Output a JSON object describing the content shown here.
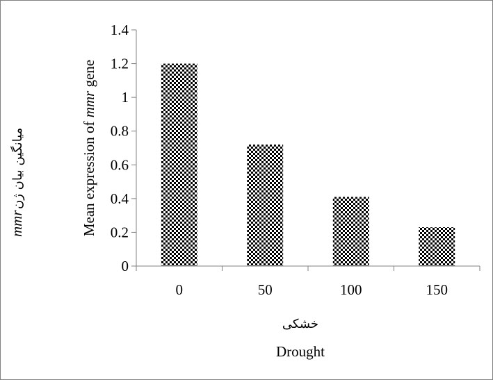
{
  "chart_data": {
    "type": "bar",
    "categories": [
      "0",
      "50",
      "100",
      "150"
    ],
    "values": [
      1.2,
      0.72,
      0.41,
      0.23
    ],
    "ylim": [
      0,
      1.4
    ],
    "yticks": [
      "0",
      "0.2",
      "0.4",
      "0.6",
      "0.8",
      "1",
      "1.2",
      "1.4"
    ],
    "xlabel_fa": "خشکی",
    "xlabel": "Drought",
    "ylabel_fa_gene": "mmr",
    "ylabel_fa_text": "میانگین بیان ژن",
    "ylabel_prefix": "Mean expression of",
    "ylabel_gene": "mmr",
    "ylabel_suffix": "gene",
    "grid": false,
    "legend": "none",
    "bar_pattern": "checkerboard",
    "colors": {
      "bar_dark": "#000000",
      "bar_light": "#ffffff",
      "axis": "#808080"
    }
  }
}
